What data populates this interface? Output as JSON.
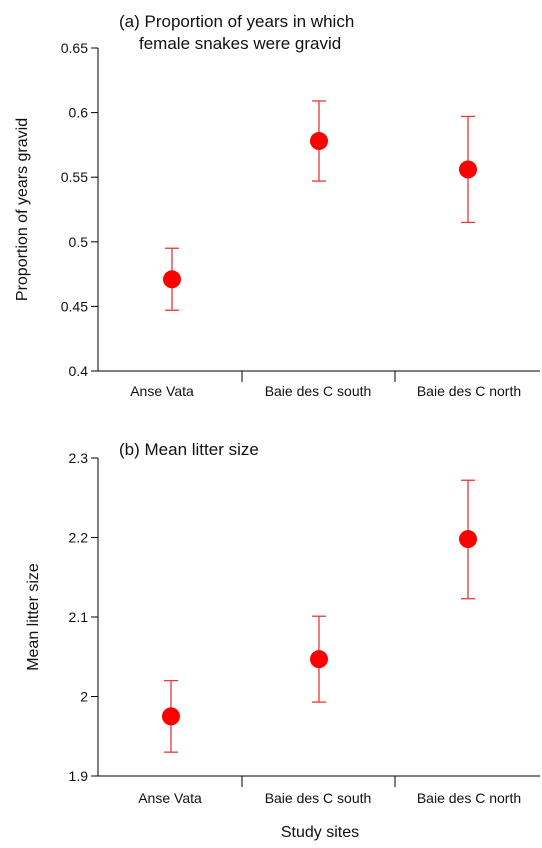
{
  "chart_data": [
    {
      "type": "scatter",
      "title": "(a) Proportion of years in which\nfemale snakes were gravid",
      "xlabel": "",
      "ylabel": "Proportion of years gravid",
      "categories": [
        "Anse Vata",
        "Baie des C south",
        "Baie des C north"
      ],
      "ylim": [
        0.4,
        0.65
      ],
      "yticks": [
        0.4,
        0.45,
        0.5,
        0.55,
        0.6,
        0.65
      ],
      "ytick_labels": [
        "0.4",
        "0.45",
        "0.5",
        "0.55",
        "0.6",
        "0.65"
      ],
      "series": [
        {
          "values": [
            0.471,
            0.578,
            0.556
          ],
          "error_low": [
            0.447,
            0.547,
            0.515
          ],
          "error_high": [
            0.495,
            0.609,
            0.597
          ]
        }
      ],
      "grid": false,
      "marker_color": "#ff0000"
    },
    {
      "type": "scatter",
      "title": "(b) Mean litter size",
      "xlabel": "Study sites",
      "ylabel": "Mean litter size",
      "categories": [
        "Anse Vata",
        "Baie des C south",
        "Baie des C north"
      ],
      "ylim": [
        1.9,
        2.3
      ],
      "yticks": [
        1.9,
        2.0,
        2.1,
        2.2,
        2.3
      ],
      "ytick_labels": [
        "1.9",
        "2",
        "2.1",
        "2.2",
        "2.3"
      ],
      "series": [
        {
          "values": [
            1.975,
            2.047,
            2.198
          ],
          "error_low": [
            1.93,
            1.993,
            2.123
          ],
          "error_high": [
            2.02,
            2.101,
            2.272
          ]
        }
      ],
      "grid": false,
      "marker_color": "#ff0000"
    }
  ],
  "colors": {
    "marker": "#ff0000",
    "error_bar": "#e8383a",
    "axis": "#000000"
  }
}
